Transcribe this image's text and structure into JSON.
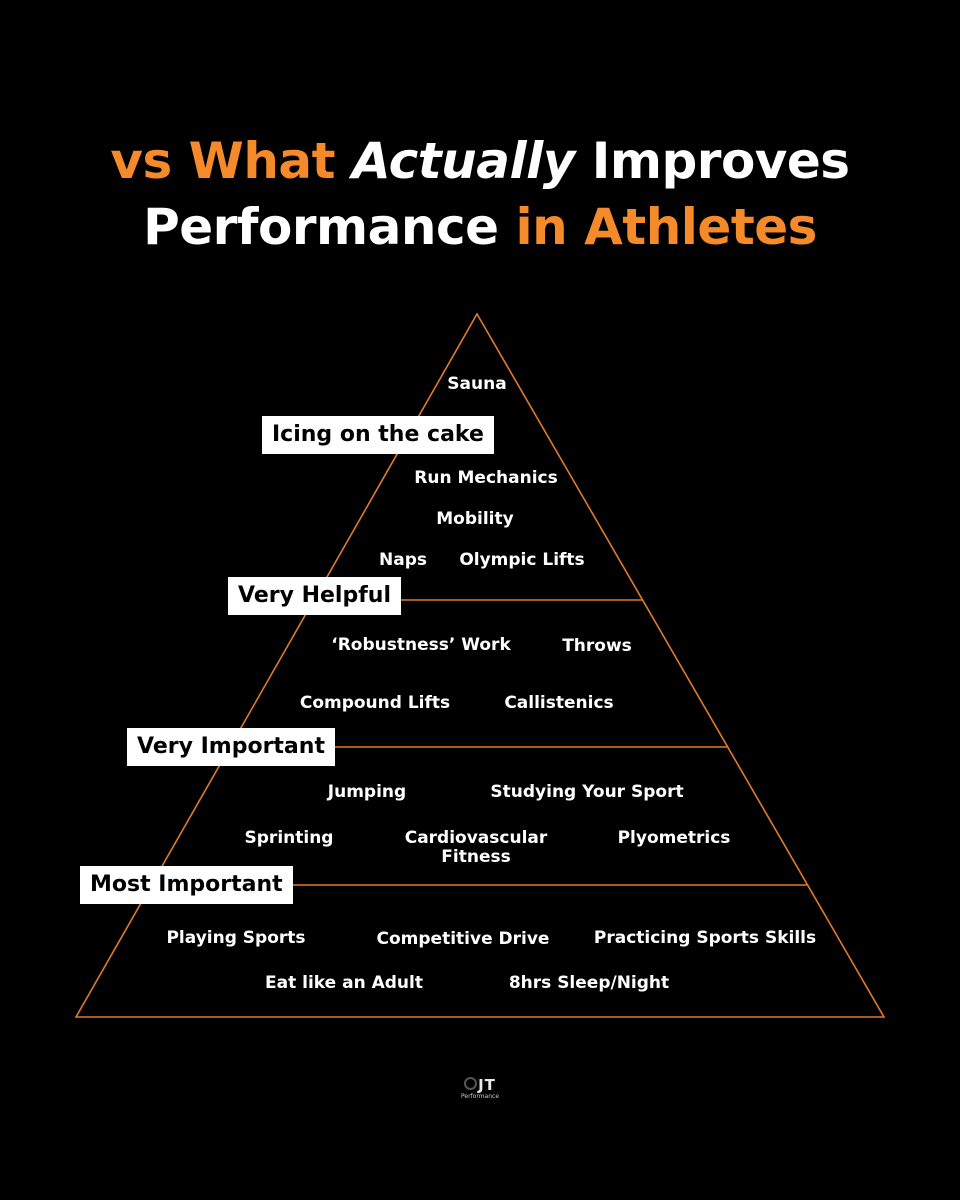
{
  "title": {
    "line1": {
      "part1": "vs What ",
      "part2": "Actually",
      "part3": " Improves"
    },
    "line2": {
      "part1": "Performance ",
      "part2": "in Athletes"
    }
  },
  "colors": {
    "accent": "#f58a2b",
    "background": "#000000",
    "text": "#ffffff",
    "pyramid_outline": "#e07b2a"
  },
  "tiers": [
    {
      "label": "Icing on the cake",
      "items": [
        "Sauna"
      ]
    },
    {
      "label": "Very Helpful",
      "items": [
        "Run Mechanics",
        "Mobility",
        "Naps",
        "Olympic Lifts"
      ]
    },
    {
      "label": "Very Important",
      "items": [
        "‘Robustness’ Work",
        "Throws",
        "Compound Lifts",
        "Callistenics"
      ]
    },
    {
      "label": "Most Important",
      "items": [
        "Jumping",
        "Studying Your Sport",
        "Sprinting",
        "Cardiovascular Fitness",
        "Plyometrics"
      ]
    },
    {
      "label": "",
      "items": [
        "Playing Sports",
        "Competitive Drive",
        "Practicing Sports Skills",
        "Eat like an Adult",
        "8hrs Sleep/Night"
      ]
    }
  ],
  "logo": {
    "mark": "JT",
    "sub": "Performance",
    "icon": "ring-logo-icon"
  }
}
